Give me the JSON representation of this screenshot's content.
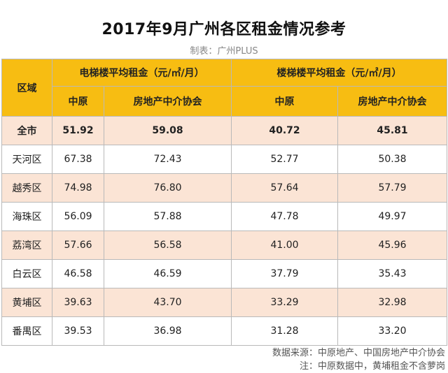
{
  "title": "2017年9月广州各区租金情况参考",
  "maker": "制表：广州PLUS",
  "header": {
    "region": "区域",
    "elevator_group": "电梯楼平均租金（元/㎡/月）",
    "stair_group": "楼梯楼平均租金（元/㎡/月）",
    "sub": [
      "中原",
      "房地产中介协会",
      "中原",
      "房地产中介协会"
    ]
  },
  "rows": [
    {
      "region": "全市",
      "v": [
        "51.92",
        "59.08",
        "40.72",
        "45.81"
      ]
    },
    {
      "region": "天河区",
      "v": [
        "67.38",
        "72.43",
        "52.77",
        "50.38"
      ]
    },
    {
      "region": "越秀区",
      "v": [
        "74.98",
        "76.80",
        "57.64",
        "57.79"
      ]
    },
    {
      "region": "海珠区",
      "v": [
        "56.09",
        "57.88",
        "47.78",
        "49.97"
      ]
    },
    {
      "region": "荔湾区",
      "v": [
        "57.66",
        "56.58",
        "41.00",
        "45.96"
      ]
    },
    {
      "region": "白云区",
      "v": [
        "46.58",
        "46.59",
        "37.79",
        "35.43"
      ]
    },
    {
      "region": "黄埔区",
      "v": [
        "39.63",
        "43.70",
        "33.29",
        "32.98"
      ]
    },
    {
      "region": "番禺区",
      "v": [
        "39.53",
        "36.98",
        "31.28",
        "33.20"
      ]
    }
  ],
  "footer": {
    "source": "数据来源：中原地产、中国房地产中介协会",
    "note": "注：中原数据中，黄埔租金不含萝岗"
  }
}
